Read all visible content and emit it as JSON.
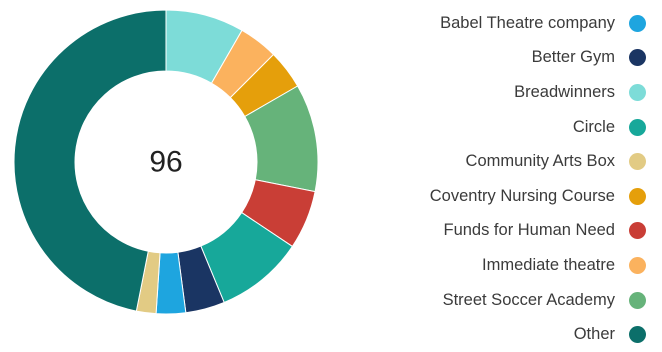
{
  "chart_data": {
    "type": "pie",
    "variant": "donut",
    "center_label": "96",
    "legend_position": "right",
    "categories": [
      "Babel Theatre company",
      "Better Gym",
      "Breadwinners",
      "Circle",
      "Community Arts Box",
      "Coventry Nursing Course",
      "Funds for Human Need",
      "Immediate theatre",
      "Street Soccer Academy",
      "Other"
    ],
    "values": [
      3,
      4,
      8,
      9,
      2,
      4,
      6,
      4,
      11,
      45
    ],
    "colors": [
      "#1ea5df",
      "#1a3563",
      "#7ddcd8",
      "#17a89a",
      "#e2cb84",
      "#e59f0b",
      "#c93e36",
      "#fbb25e",
      "#66b37a",
      "#0c6f6a"
    ],
    "slice_order": [
      "Breadwinners",
      "Immediate theatre",
      "Coventry Nursing Course",
      "Street Soccer Academy",
      "Funds for Human Need",
      "Circle",
      "Better Gym",
      "Babel Theatre company",
      "Community Arts Box",
      "Other"
    ]
  }
}
